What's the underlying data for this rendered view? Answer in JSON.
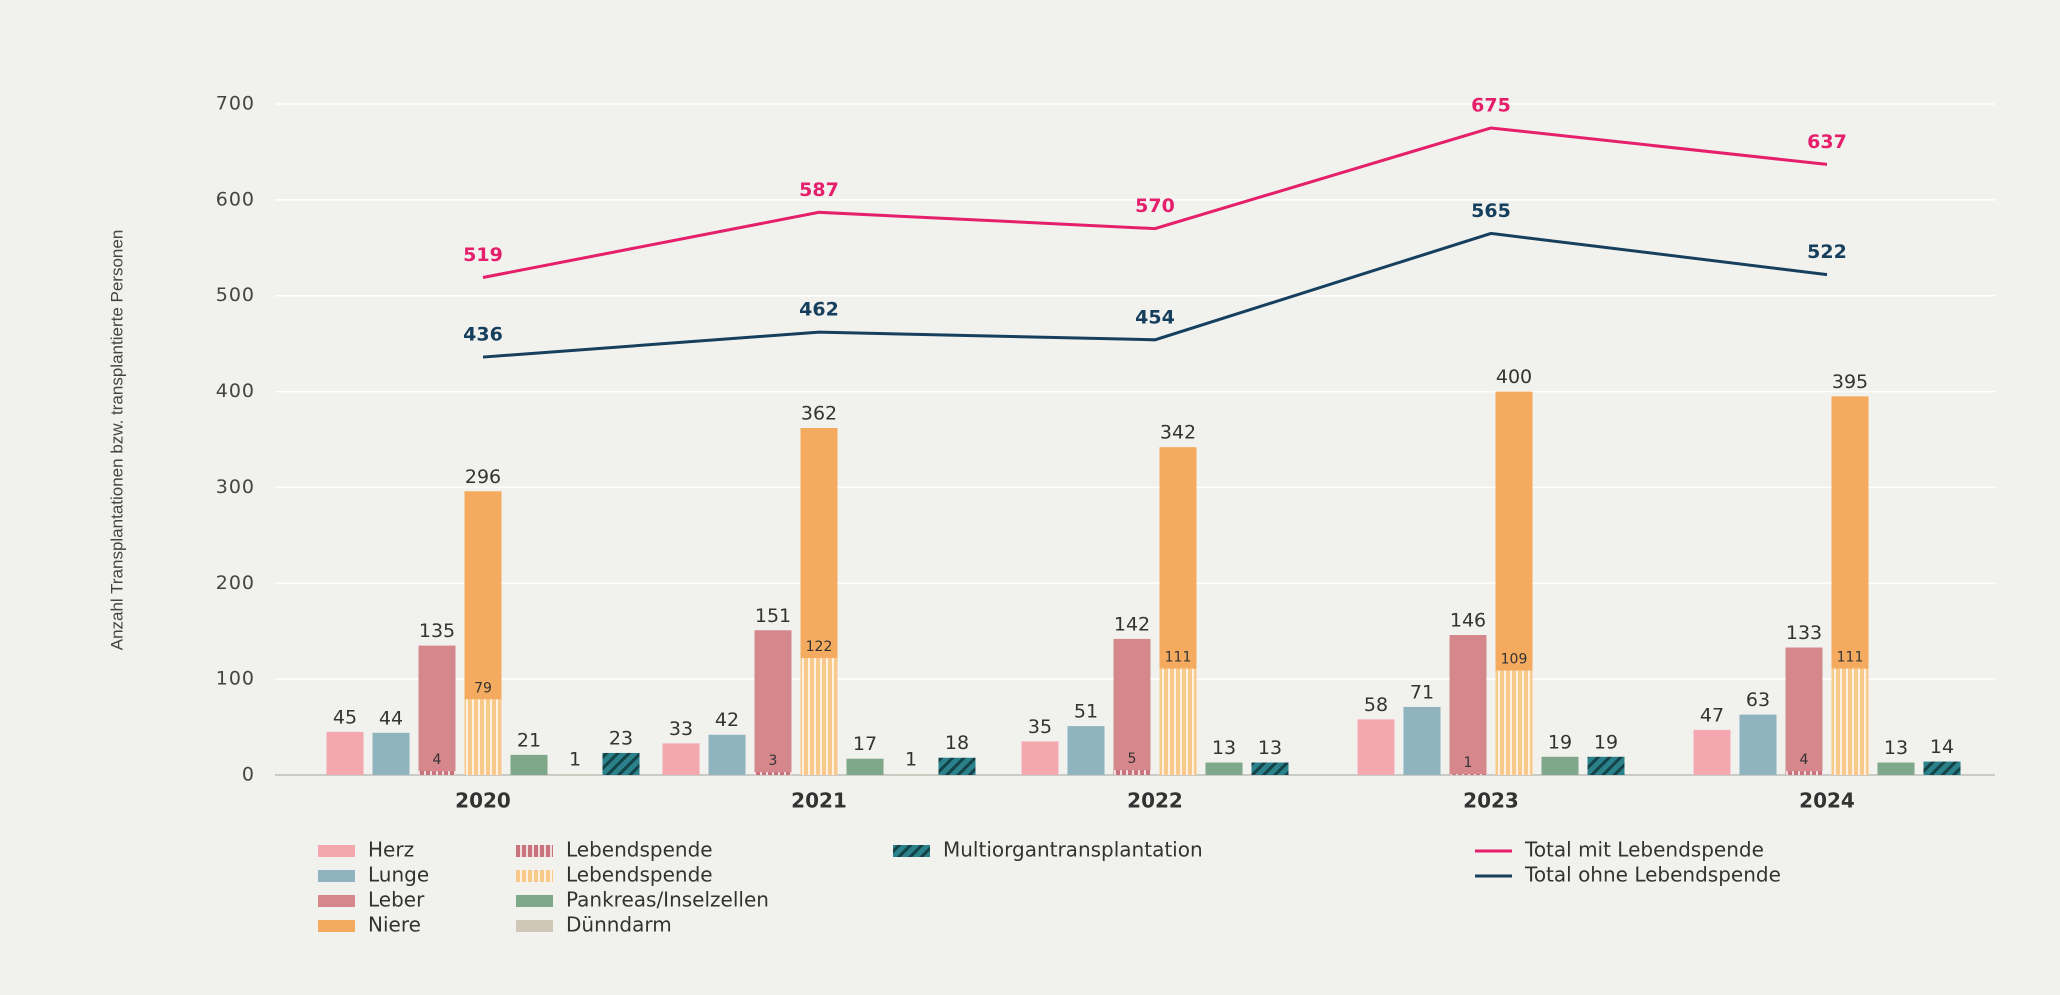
{
  "chart_data": {
    "type": "bar",
    "y_axis_label": "Anzahl Transplantationen bzw. transplantierte Personen",
    "categories": [
      "2020",
      "2021",
      "2022",
      "2023",
      "2024"
    ],
    "ylim": [
      0,
      700
    ],
    "yticks": [
      0,
      100,
      200,
      300,
      400,
      500,
      600,
      700
    ],
    "grid": true,
    "series": [
      {
        "name": "Herz",
        "color": "#f4a7ae",
        "values": [
          45,
          33,
          35,
          58,
          47
        ]
      },
      {
        "name": "Lunge",
        "color": "#8fb4bf",
        "values": [
          44,
          42,
          51,
          71,
          63
        ]
      },
      {
        "name": "Leber",
        "color": "#d5878c",
        "values": [
          135,
          151,
          142,
          146,
          133
        ]
      },
      {
        "name": "Niere",
        "color": "#f4ab5f",
        "values": [
          296,
          362,
          342,
          400,
          395
        ]
      },
      {
        "name": "Pankreas/Inselzellen",
        "color": "#7ea889",
        "values": [
          21,
          17,
          13,
          19,
          13
        ]
      },
      {
        "name": "Dünndarm",
        "color": "#cfc8b8",
        "values": [
          1,
          1,
          null,
          null,
          null
        ]
      },
      {
        "name": "Multiorgantransplantation",
        "color": "#2b8189",
        "pattern": "diagonal",
        "values": [
          23,
          18,
          13,
          19,
          14
        ]
      }
    ],
    "living_donation": [
      {
        "name": "Lebendspende",
        "parent": 2,
        "color": "#c9737d",
        "pattern": "vertical",
        "values": [
          4,
          3,
          5,
          1,
          4
        ]
      },
      {
        "name": "Lebendspende",
        "parent": 3,
        "color": "#f8c98a",
        "pattern": "vertical",
        "values": [
          79,
          122,
          111,
          109,
          111
        ]
      }
    ],
    "lines": [
      {
        "name": "Total mit Lebendspende",
        "color": "#e51f6b",
        "values": [
          519,
          587,
          570,
          675,
          637
        ]
      },
      {
        "name": "Total ohne Lebendspende",
        "color": "#163f5e",
        "values": [
          436,
          462,
          454,
          565,
          522
        ]
      }
    ]
  }
}
